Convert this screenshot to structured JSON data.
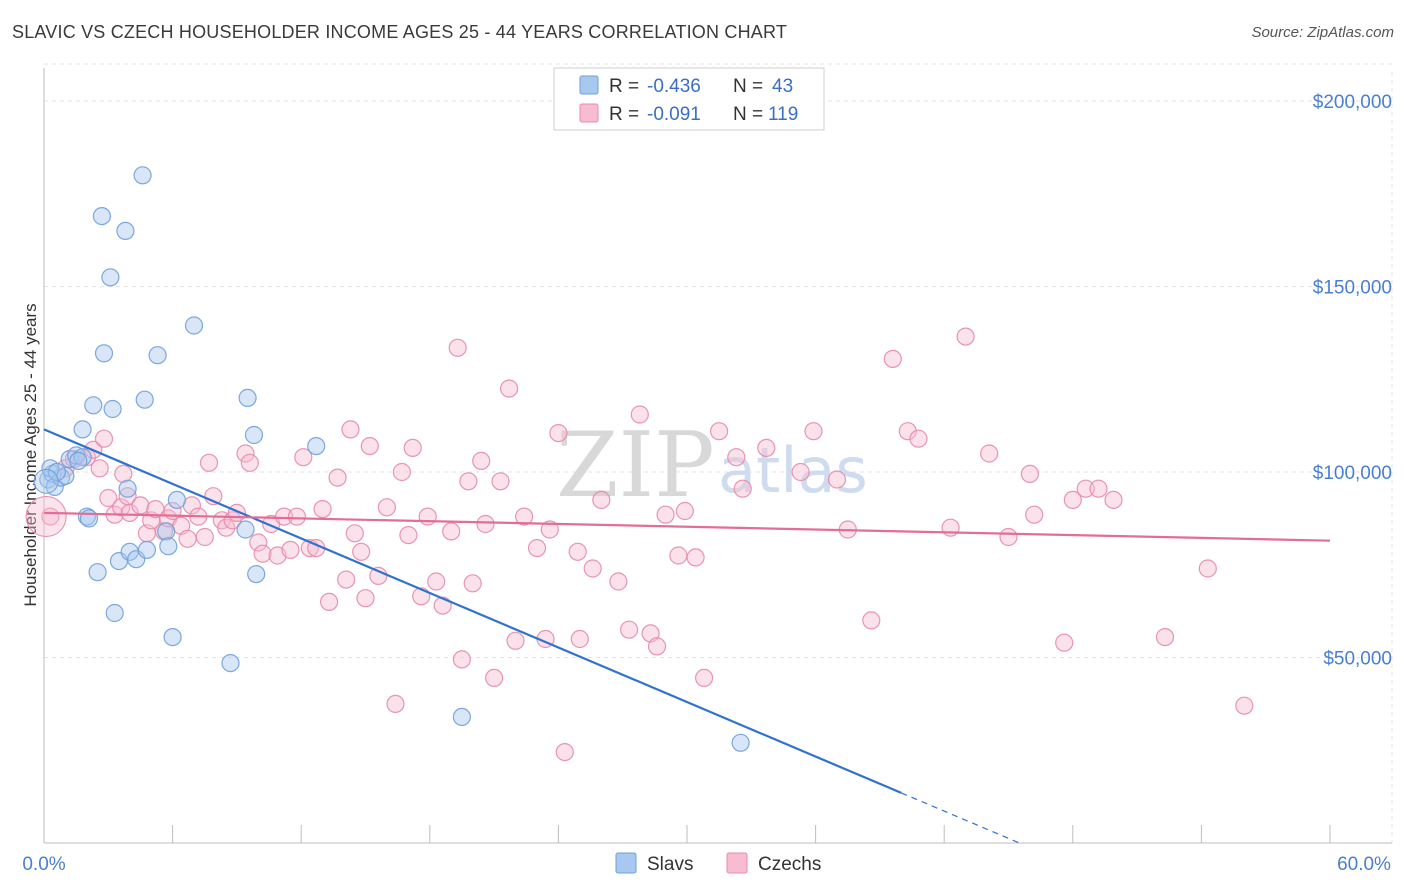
{
  "header": {
    "title": "SLAVIC VS CZECH HOUSEHOLDER INCOME AGES 25 - 44 YEARS CORRELATION CHART",
    "source": "Source: ZipAtlas.com"
  },
  "watermark": {
    "zip": "ZIP",
    "atlas": "atlas"
  },
  "stats": [
    {
      "r_label": "R =",
      "r_value": "-0.436",
      "n_label": "N =",
      "n_value": "43",
      "color": "#a9c8f0",
      "stroke": "#6f9fd8"
    },
    {
      "r_label": "R =",
      "r_value": "-0.091",
      "n_label": "N =",
      "n_value": "119",
      "color": "#f7bcd0",
      "stroke": "#e68aab"
    }
  ],
  "chart_data": {
    "type": "scatter",
    "title": "SLAVIC VS CZECH HOUSEHOLDER INCOME AGES 25 - 44 YEARS CORRELATION CHART",
    "xlabel": "",
    "ylabel": "Householder Income Ages 25 - 44 years",
    "xlim": [
      0,
      60
    ],
    "ylim": [
      0,
      210000
    ],
    "x_tick_labels": [
      "0.0%",
      "60.0%"
    ],
    "y_ticks": [
      {
        "value": 50000,
        "label": "$50,000"
      },
      {
        "value": 100000,
        "label": "$100,000"
      },
      {
        "value": 150000,
        "label": "$150,000"
      },
      {
        "value": 200000,
        "label": "$200,000"
      }
    ],
    "grid": true,
    "legend": "bottom-center",
    "series": [
      {
        "name": "Slavs",
        "color": "#a9c8f0",
        "stroke": "#6f9fd8",
        "line_color": "#2f72d0",
        "trend": {
          "x0": 0,
          "y0": 111500,
          "x1": 40,
          "y1": 13500,
          "dash_to_x": 45.5
        },
        "points": [
          [
            0.2,
            98000
          ],
          [
            0.4,
            99500
          ],
          [
            0.5,
            96000
          ],
          [
            0.8,
            98500
          ],
          [
            1.0,
            99000
          ],
          [
            1.2,
            103500
          ],
          [
            1.5,
            104500
          ],
          [
            1.8,
            104000
          ],
          [
            1.8,
            111500
          ],
          [
            2.0,
            88000
          ],
          [
            2.1,
            87500
          ],
          [
            2.3,
            118000
          ],
          [
            2.5,
            73000
          ],
          [
            2.7,
            169000
          ],
          [
            2.8,
            132000
          ],
          [
            3.1,
            152500
          ],
          [
            3.2,
            117000
          ],
          [
            3.3,
            62000
          ],
          [
            3.5,
            76000
          ],
          [
            3.8,
            165000
          ],
          [
            3.9,
            95500
          ],
          [
            4.0,
            78500
          ],
          [
            4.3,
            76500
          ],
          [
            4.6,
            180000
          ],
          [
            4.7,
            119500
          ],
          [
            4.8,
            79000
          ],
          [
            5.3,
            131500
          ],
          [
            5.7,
            84000
          ],
          [
            5.8,
            80000
          ],
          [
            6.0,
            55500
          ],
          [
            6.2,
            92500
          ],
          [
            7.0,
            139500
          ],
          [
            8.7,
            48500
          ],
          [
            9.4,
            84500
          ],
          [
            9.5,
            120000
          ],
          [
            9.8,
            110000
          ],
          [
            9.9,
            72500
          ],
          [
            12.7,
            107000
          ],
          [
            19.5,
            34000
          ],
          [
            32.5,
            27000
          ],
          [
            0.3,
            101000
          ],
          [
            0.6,
            100000
          ],
          [
            1.6,
            103000
          ]
        ]
      },
      {
        "name": "Czechs",
        "color": "#f7bcd0",
        "stroke": "#e68aab",
        "line_color": "#e26d96",
        "trend": {
          "x0": 0,
          "y0": 89000,
          "x1": 60,
          "y1": 81500
        },
        "points": [
          [
            0.3,
            88000
          ],
          [
            1.0,
            101000
          ],
          [
            1.4,
            103500
          ],
          [
            2.0,
            104000
          ],
          [
            2.3,
            106000
          ],
          [
            2.6,
            101000
          ],
          [
            2.8,
            109000
          ],
          [
            3.0,
            93000
          ],
          [
            3.3,
            88500
          ],
          [
            3.6,
            90500
          ],
          [
            3.7,
            99500
          ],
          [
            3.9,
            93500
          ],
          [
            4.0,
            89000
          ],
          [
            4.5,
            91000
          ],
          [
            4.8,
            83500
          ],
          [
            5.0,
            87000
          ],
          [
            5.2,
            90000
          ],
          [
            5.6,
            84000
          ],
          [
            5.8,
            87500
          ],
          [
            6.0,
            89500
          ],
          [
            6.4,
            85500
          ],
          [
            6.7,
            82000
          ],
          [
            6.9,
            91000
          ],
          [
            7.2,
            88000
          ],
          [
            7.5,
            82500
          ],
          [
            7.7,
            102500
          ],
          [
            7.9,
            93500
          ],
          [
            8.3,
            87000
          ],
          [
            8.5,
            85000
          ],
          [
            8.8,
            87000
          ],
          [
            9.0,
            89000
          ],
          [
            9.4,
            105000
          ],
          [
            9.6,
            102500
          ],
          [
            10.0,
            81000
          ],
          [
            10.2,
            78000
          ],
          [
            10.6,
            86000
          ],
          [
            10.9,
            77500
          ],
          [
            11.2,
            88000
          ],
          [
            11.5,
            79000
          ],
          [
            11.8,
            88000
          ],
          [
            12.1,
            104000
          ],
          [
            12.4,
            79500
          ],
          [
            12.7,
            79500
          ],
          [
            13.0,
            90000
          ],
          [
            13.3,
            65000
          ],
          [
            13.7,
            98500
          ],
          [
            14.1,
            71000
          ],
          [
            14.3,
            111500
          ],
          [
            14.5,
            83500
          ],
          [
            14.8,
            78500
          ],
          [
            15.0,
            66000
          ],
          [
            15.2,
            107000
          ],
          [
            15.6,
            72000
          ],
          [
            16.0,
            90500
          ],
          [
            16.4,
            37500
          ],
          [
            16.7,
            100000
          ],
          [
            17.0,
            83000
          ],
          [
            17.2,
            106500
          ],
          [
            17.6,
            66500
          ],
          [
            17.9,
            88000
          ],
          [
            18.3,
            70500
          ],
          [
            18.6,
            64000
          ],
          [
            19.0,
            84000
          ],
          [
            19.3,
            133500
          ],
          [
            19.5,
            49500
          ],
          [
            19.8,
            97500
          ],
          [
            20.0,
            70000
          ],
          [
            20.4,
            103000
          ],
          [
            20.6,
            86000
          ],
          [
            21.0,
            44500
          ],
          [
            21.3,
            97500
          ],
          [
            21.7,
            122500
          ],
          [
            22.0,
            54500
          ],
          [
            22.4,
            88000
          ],
          [
            23.0,
            79500
          ],
          [
            23.4,
            55000
          ],
          [
            23.6,
            84500
          ],
          [
            24.0,
            110500
          ],
          [
            24.3,
            24500
          ],
          [
            24.9,
            78500
          ],
          [
            25.0,
            55000
          ],
          [
            25.6,
            74000
          ],
          [
            26.0,
            92500
          ],
          [
            26.8,
            70500
          ],
          [
            27.3,
            57500
          ],
          [
            27.8,
            115500
          ],
          [
            28.3,
            56500
          ],
          [
            28.6,
            53000
          ],
          [
            29.0,
            88500
          ],
          [
            29.6,
            77500
          ],
          [
            29.9,
            89500
          ],
          [
            30.4,
            77000
          ],
          [
            30.8,
            44500
          ],
          [
            31.5,
            111000
          ],
          [
            32.3,
            104000
          ],
          [
            32.6,
            95500
          ],
          [
            33.7,
            106500
          ],
          [
            35.3,
            100000
          ],
          [
            35.9,
            111000
          ],
          [
            37.0,
            98000
          ],
          [
            37.5,
            84500
          ],
          [
            38.6,
            60000
          ],
          [
            39.6,
            130500
          ],
          [
            40.3,
            111000
          ],
          [
            40.8,
            109000
          ],
          [
            42.3,
            85000
          ],
          [
            43.0,
            136500
          ],
          [
            44.1,
            105000
          ],
          [
            45.0,
            82500
          ],
          [
            46.0,
            99500
          ],
          [
            46.2,
            88500
          ],
          [
            47.6,
            54000
          ],
          [
            48.0,
            92500
          ],
          [
            48.6,
            95500
          ],
          [
            49.2,
            95500
          ],
          [
            49.9,
            92500
          ],
          [
            52.3,
            55500
          ],
          [
            54.3,
            74000
          ],
          [
            56.0,
            37000
          ]
        ]
      }
    ]
  }
}
